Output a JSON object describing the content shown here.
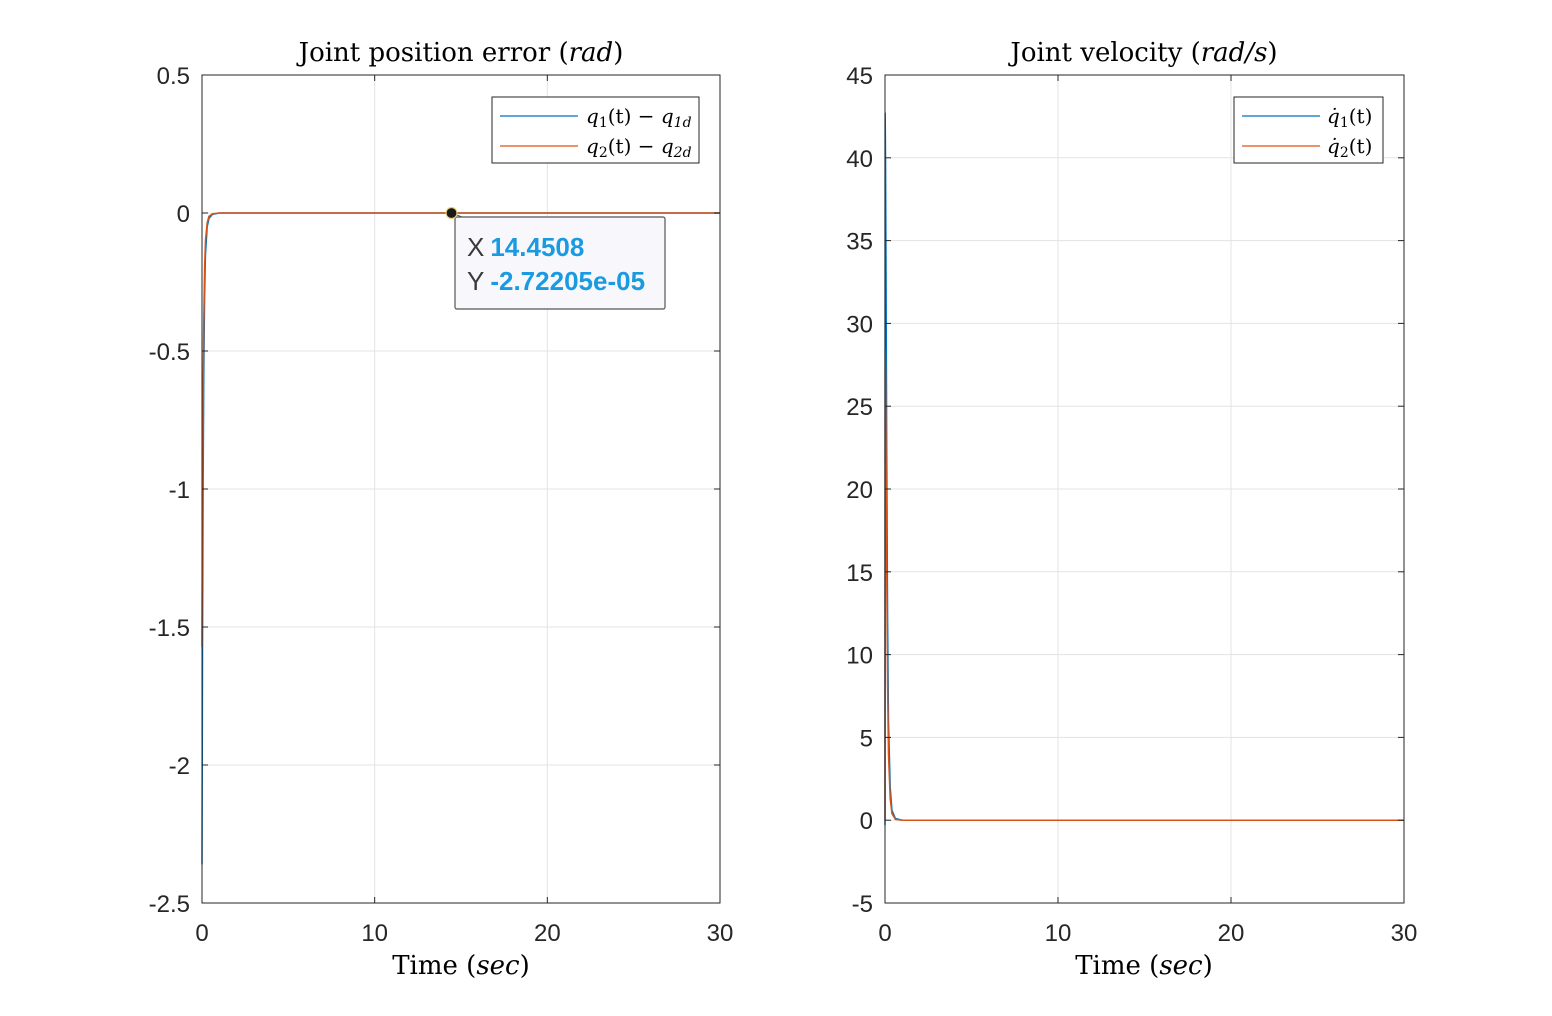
{
  "colors": {
    "series1": "#0072BD",
    "series2": "#D95319",
    "grid": "#e3e3e3",
    "axis": "#262626",
    "tip_value": "#1a9ae0"
  },
  "chart_data": [
    {
      "type": "line",
      "title_main": "Joint position error (",
      "title_unit": "rad",
      "title_end": ")",
      "xlabel_main": "Time (",
      "xlabel_unit": "sec",
      "xlabel_end": ")",
      "xlim": [
        0,
        30
      ],
      "ylim": [
        -2.5,
        0.5
      ],
      "xticks": [
        0,
        10,
        20,
        30
      ],
      "xtick_labels": [
        "0",
        "10",
        "20",
        "30"
      ],
      "yticks": [
        0.5,
        0,
        -0.5,
        -1,
        -1.5,
        -2,
        -2.5
      ],
      "ytick_labels": [
        "0.5",
        "0",
        "-0.5",
        "-1",
        "-1.5",
        "-2",
        "-2.5"
      ],
      "grid": true,
      "legend_position": "top-right",
      "series": [
        {
          "name": "q1(t) − q1d",
          "x": [
            0,
            0.03,
            0.06,
            0.1,
            0.15,
            0.2,
            0.3,
            0.4,
            0.6,
            1,
            2,
            30
          ],
          "y": [
            -2.36,
            -1.57,
            -1.05,
            -0.6,
            -0.3,
            -0.15,
            -0.05,
            -0.02,
            -0.005,
            0,
            0,
            0
          ]
        },
        {
          "name": "q2(t) − q2d",
          "x": [
            0,
            0.03,
            0.06,
            0.1,
            0.15,
            0.2,
            0.3,
            0.4,
            0.6,
            1,
            2,
            30
          ],
          "y": [
            -1.57,
            -1.05,
            -0.7,
            -0.4,
            -0.2,
            -0.1,
            -0.035,
            -0.012,
            -0.003,
            0,
            0,
            0
          ]
        }
      ],
      "legend": {
        "s1": {
          "v": "q",
          "sub": "1",
          "rest": "(t) − ",
          "v2": "q",
          "sub2": "1d"
        },
        "s2": {
          "v": "q",
          "sub": "2",
          "rest": "(t) − ",
          "v2": "q",
          "sub2": "2d"
        }
      },
      "datatip": {
        "x": 14.4508,
        "y": -2.72205e-05,
        "x_key": "X",
        "x_value": "14.4508",
        "y_key": "Y",
        "y_value": "-2.72205e-05"
      }
    },
    {
      "type": "line",
      "title_main": "Joint velocity (",
      "title_unit": "rad/s",
      "title_end": ")",
      "xlabel_main": "Time (",
      "xlabel_unit": "sec",
      "xlabel_end": ")",
      "xlim": [
        0,
        30
      ],
      "ylim": [
        -5,
        45
      ],
      "xticks": [
        0,
        10,
        20,
        30
      ],
      "xtick_labels": [
        "0",
        "10",
        "20",
        "30"
      ],
      "yticks": [
        45,
        40,
        35,
        30,
        25,
        20,
        15,
        10,
        5,
        0,
        -5
      ],
      "ytick_labels": [
        "45",
        "40",
        "35",
        "30",
        "25",
        "20",
        "15",
        "10",
        "5",
        "0",
        "-5"
      ],
      "grid": true,
      "legend_position": "top-right",
      "series": [
        {
          "name": "q̇1(t)",
          "x": [
            0,
            0.01,
            0.03,
            0.06,
            0.1,
            0.15,
            0.2,
            0.3,
            0.4,
            0.6,
            1,
            30
          ],
          "y": [
            -0.3,
            42.7,
            40,
            33,
            22,
            12,
            6,
            2,
            0.6,
            0.1,
            0,
            0
          ]
        },
        {
          "name": "q̇2(t)",
          "x": [
            0,
            0.01,
            0.03,
            0.06,
            0.1,
            0.15,
            0.2,
            0.3,
            0.4,
            0.6,
            1,
            30
          ],
          "y": [
            0,
            28.5,
            27,
            22,
            15,
            8,
            4,
            1.3,
            0.4,
            0.05,
            0,
            0
          ]
        }
      ],
      "legend": {
        "s1": {
          "v": "q̇",
          "sub": "1",
          "rest": "(t)"
        },
        "s2": {
          "v": "q̇",
          "sub": "2",
          "rest": "(t)"
        }
      }
    }
  ]
}
